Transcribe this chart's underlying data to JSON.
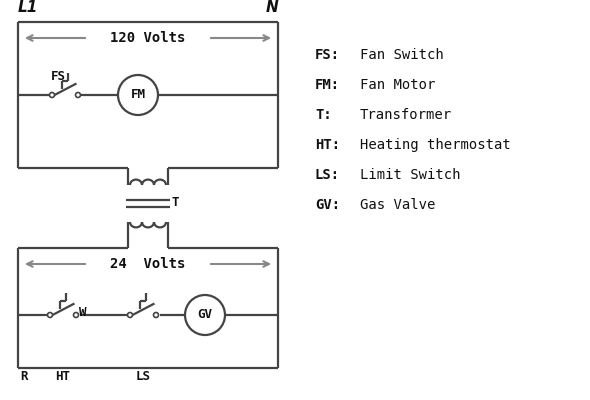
{
  "bg_color": "#ffffff",
  "line_color": "#444444",
  "arrow_color": "#888888",
  "text_color": "#111111",
  "legend": [
    [
      "FS:",
      "Fan Switch"
    ],
    [
      "FM:",
      "Fan Motor"
    ],
    [
      "T:",
      "Transformer"
    ],
    [
      "HT:",
      "Heating thermostat"
    ],
    [
      "LS:",
      "Limit Switch"
    ],
    [
      "GV:",
      "Gas Valve"
    ]
  ],
  "label_L1": "L1",
  "label_N": "N",
  "volts_120": "120 Volts",
  "volts_24": "24  Volts"
}
